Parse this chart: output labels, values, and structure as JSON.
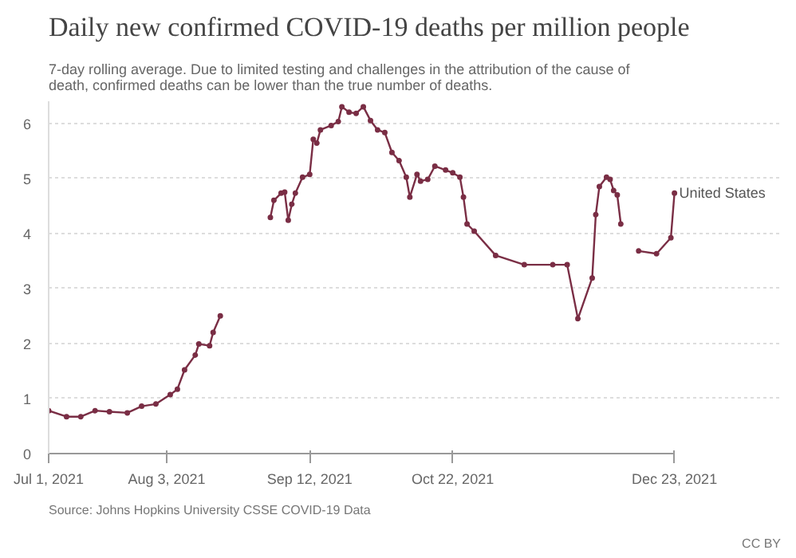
{
  "chart_data": {
    "type": "line",
    "title": "Daily new confirmed COVID-19 deaths per million people",
    "subtitle": "7-day rolling average. Due to limited testing and challenges in the attribution of the cause of death, confirmed deaths can be lower than the true number of deaths.",
    "annotations": [
      "Source: Johns Hopkins University CSSE COVID-19 Data",
      "CC BY"
    ],
    "x": [
      "2021-07-01",
      "2021-07-06",
      "2021-07-10",
      "2021-07-14",
      "2021-07-18",
      "2021-07-23",
      "2021-07-27",
      "2021-07-31",
      "2021-08-04",
      "2021-08-06",
      "2021-08-08",
      "2021-08-11",
      "2021-08-12",
      "2021-08-15",
      "2021-08-16",
      "2021-08-18",
      "2021-08-25",
      "2021-09-01",
      "2021-09-02",
      "2021-09-04",
      "2021-09-05",
      "2021-09-06",
      "2021-09-07",
      "2021-09-08",
      "2021-09-10",
      "2021-09-12",
      "2021-09-13",
      "2021-09-14",
      "2021-09-15",
      "2021-09-18",
      "2021-09-20",
      "2021-09-21",
      "2021-09-23",
      "2021-09-25",
      "2021-09-27",
      "2021-09-29",
      "2021-10-01",
      "2021-10-03",
      "2021-10-05",
      "2021-10-07",
      "2021-10-09",
      "2021-10-10",
      "2021-10-12",
      "2021-10-13",
      "2021-10-15",
      "2021-10-17",
      "2021-10-20",
      "2021-10-22",
      "2021-10-24",
      "2021-10-25",
      "2021-10-26",
      "2021-10-28",
      "2021-11-03",
      "2021-11-11",
      "2021-11-19",
      "2021-11-23",
      "2021-11-26",
      "2021-11-30",
      "2021-12-01",
      "2021-12-02",
      "2021-12-04",
      "2021-12-05",
      "2021-12-06",
      "2021-12-07",
      "2021-12-08",
      "2021-12-11",
      "2021-12-13",
      "2021-12-18",
      "2021-12-22",
      "2021-12-23"
    ],
    "series": [
      {
        "name": "United States",
        "color": "#7a2e45",
        "values": [
          0.78,
          0.67,
          0.67,
          0.78,
          0.76,
          0.74,
          0.86,
          0.9,
          1.07,
          1.17,
          1.52,
          1.79,
          1.99,
          1.96,
          2.2,
          2.5,
          null,
          4.29,
          4.6,
          4.73,
          4.75,
          4.24,
          4.53,
          4.73,
          5.02,
          5.07,
          5.71,
          5.64,
          5.88,
          5.96,
          6.03,
          6.3,
          6.2,
          6.18,
          6.3,
          6.05,
          5.88,
          5.83,
          5.47,
          5.32,
          5.02,
          4.66,
          5.07,
          4.95,
          4.98,
          5.22,
          5.15,
          5.1,
          5.02,
          4.66,
          4.17,
          4.04,
          3.6,
          3.43,
          3.43,
          3.43,
          2.45,
          3.19,
          4.34,
          4.85,
          5.02,
          4.98,
          4.78,
          4.7,
          4.17,
          null,
          3.68,
          3.63,
          3.92,
          4.73
        ]
      }
    ],
    "xlim": [
      "2021-07-01",
      "2021-12-23"
    ],
    "xticks": [
      {
        "value": "2021-07-01",
        "label": "Jul 1, 2021"
      },
      {
        "value": "2021-08-03",
        "label": "Aug 3, 2021"
      },
      {
        "value": "2021-09-12",
        "label": "Sep 12, 2021"
      },
      {
        "value": "2021-10-22",
        "label": "Oct 22, 2021"
      },
      {
        "value": "2021-12-23",
        "label": "Dec 23, 2021"
      }
    ],
    "ylim": [
      0,
      6.4
    ],
    "yticks": [
      0,
      1,
      2,
      3,
      4,
      5,
      6
    ],
    "grid": "y",
    "marker": "circle",
    "line_style": "solid"
  }
}
